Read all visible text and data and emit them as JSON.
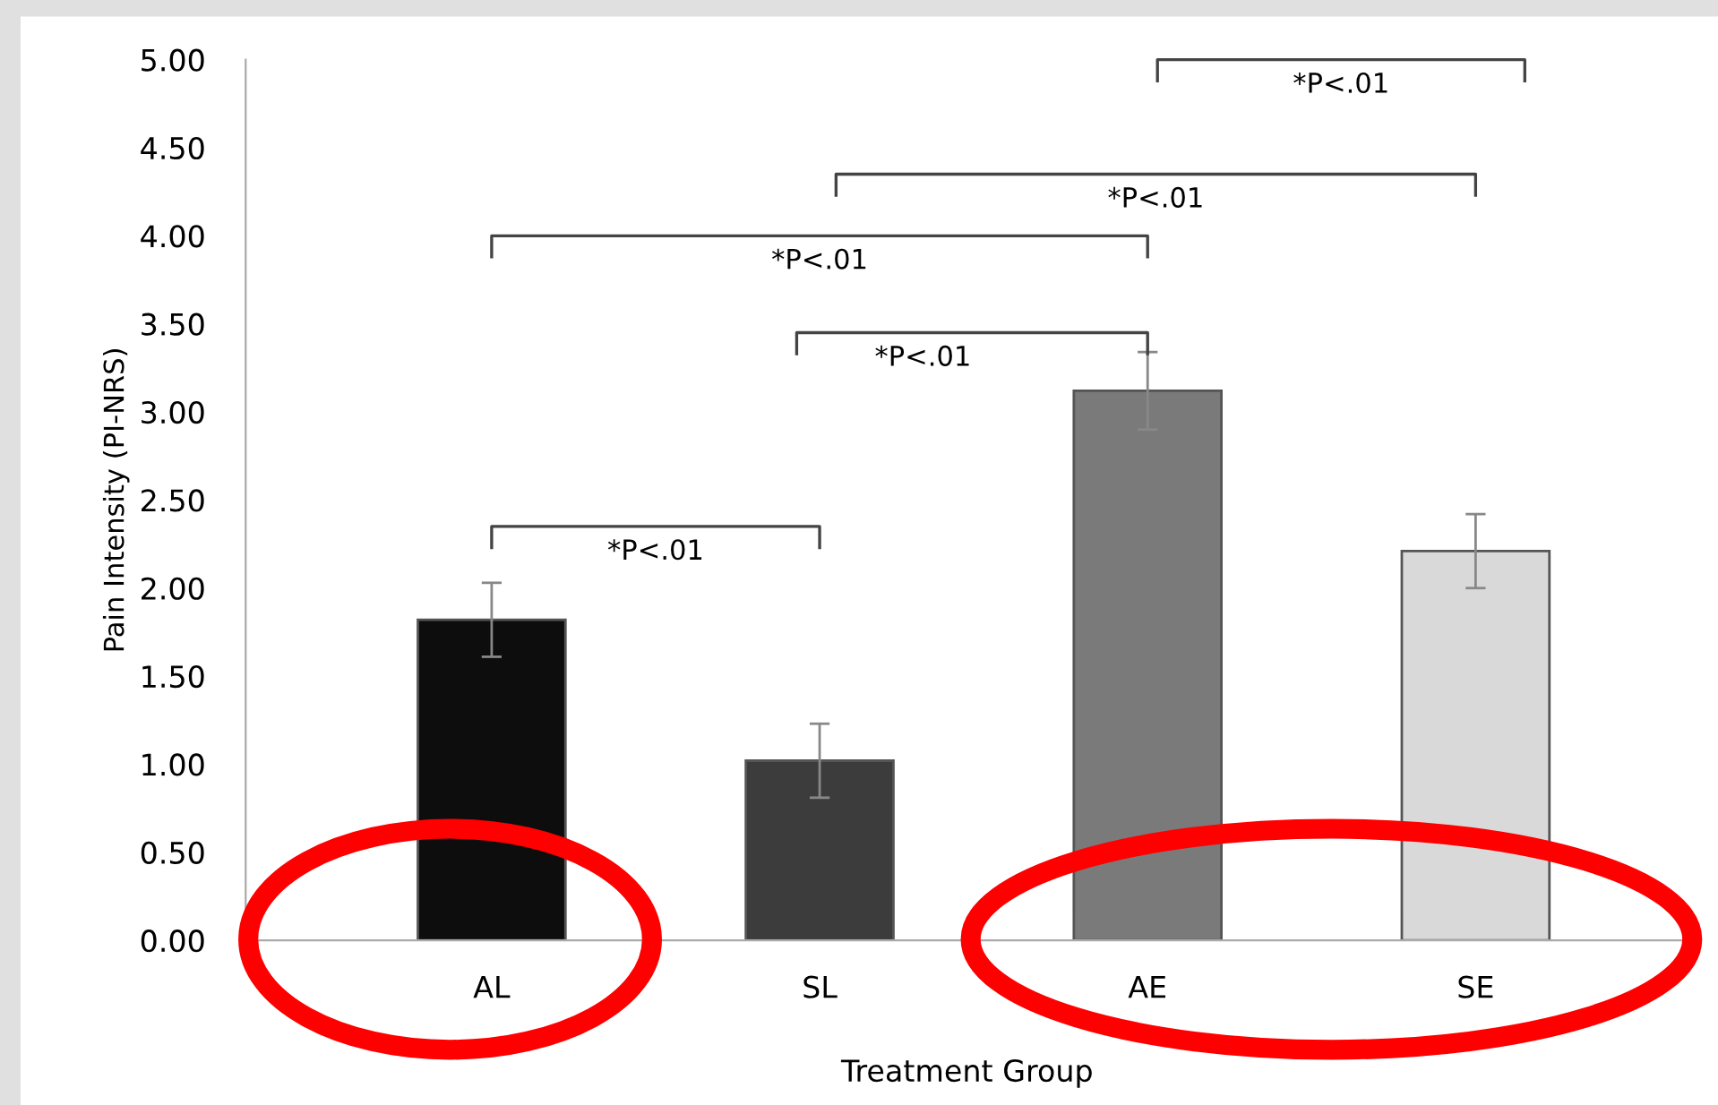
{
  "chart_data": {
    "type": "bar",
    "xlabel": "Treatment Group",
    "ylabel": "Pain Intensity (PI-NRS)",
    "categories": [
      "AL",
      "SL",
      "AE",
      "SE"
    ],
    "values": [
      1.82,
      1.02,
      3.12,
      2.21
    ],
    "errors": [
      0.21,
      0.21,
      0.22,
      0.21
    ],
    "colors": [
      "#0d0d0d",
      "#3c3c3c",
      "#7a7a7a",
      "#d9d9d9"
    ],
    "ylim": [
      0,
      5
    ],
    "yticks": [
      {
        "value": 0,
        "label": "0.00"
      },
      {
        "value": 0.5,
        "label": "0.50"
      },
      {
        "value": 1,
        "label": "1.00"
      },
      {
        "value": 1.5,
        "label": "1.50"
      },
      {
        "value": 2,
        "label": "2.00"
      },
      {
        "value": 2.5,
        "label": "2.50"
      },
      {
        "value": 3,
        "label": "3.00"
      },
      {
        "value": 3.5,
        "label": "3.50"
      },
      {
        "value": 4,
        "label": "4.00"
      },
      {
        "value": 4.5,
        "label": "4.50"
      },
      {
        "value": 5,
        "label": "5.00"
      }
    ],
    "grid": false,
    "annotations": [
      "*P<.01",
      "*P<.01",
      "*P<.01",
      "*P<.01",
      "*P<.01"
    ]
  }
}
